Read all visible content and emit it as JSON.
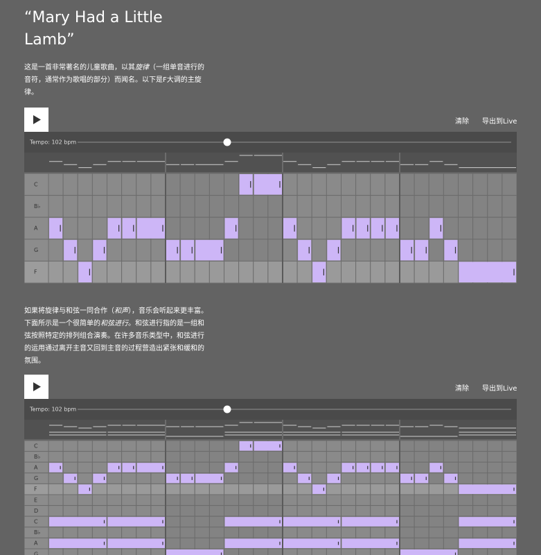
{
  "title": "“Mary Had a Little Lamb”",
  "intro": [
    {
      "text": "这是一首非常著名的儿童歌曲，以其"
    },
    {
      "text": "旋律",
      "italic": true
    },
    {
      "text": "（一组单音进行的音符，通常作为歌唱的部分）而闻名。以下是F大调的主旋律。"
    }
  ],
  "harmony": [
    {
      "text": "如果将旋律与和弦一同合作（"
    },
    {
      "text": "和声",
      "italic": true
    },
    {
      "text": "），音乐会听起来更丰富。下面所示是一个很简单的"
    },
    {
      "text": "和弦进行",
      "italic": true
    },
    {
      "text": "。和弦进行指的是一组和弦按照特定的排列组合演奏。在许多音乐类型中，和弦进行的运用通过离开主音又回到主音的过程营造出紧张和缓和的氛围。"
    }
  ],
  "players": [
    {
      "clear": "清除",
      "export": "导出到Live",
      "tempo": "Tempo: 102 bpm",
      "steps": 32,
      "bar_steps": 8,
      "rows": [
        "C",
        "B♭",
        "A",
        "G",
        "F"
      ],
      "tonic_rows": [
        4
      ],
      "notes": [
        [
          2,
          0,
          1
        ],
        [
          3,
          1,
          1
        ],
        [
          4,
          2,
          1
        ],
        [
          3,
          3,
          1
        ],
        [
          2,
          4,
          1
        ],
        [
          2,
          5,
          1
        ],
        [
          2,
          6,
          2
        ],
        [
          3,
          8,
          1
        ],
        [
          3,
          9,
          1
        ],
        [
          3,
          10,
          2
        ],
        [
          2,
          12,
          1
        ],
        [
          0,
          13,
          1
        ],
        [
          0,
          14,
          2
        ],
        [
          2,
          16,
          1
        ],
        [
          3,
          17,
          1
        ],
        [
          4,
          18,
          1
        ],
        [
          3,
          19,
          1
        ],
        [
          2,
          20,
          1
        ],
        [
          2,
          21,
          1
        ],
        [
          2,
          22,
          1
        ],
        [
          2,
          23,
          1
        ],
        [
          3,
          24,
          1
        ],
        [
          3,
          25,
          1
        ],
        [
          2,
          26,
          1
        ],
        [
          3,
          27,
          1
        ],
        [
          4,
          28,
          4
        ]
      ]
    },
    {
      "clear": "清除",
      "export": "导出到Live",
      "tempo": "Tempo: 102 bpm",
      "steps": 32,
      "bar_steps": 8,
      "rows": [
        "C",
        "B♭",
        "A",
        "G",
        "F",
        "E",
        "D",
        "C",
        "B♭",
        "A",
        "G"
      ],
      "tonic_rows": [
        4
      ],
      "notes": [
        [
          2,
          0,
          1
        ],
        [
          3,
          1,
          1
        ],
        [
          4,
          2,
          1
        ],
        [
          3,
          3,
          1
        ],
        [
          2,
          4,
          1
        ],
        [
          2,
          5,
          1
        ],
        [
          2,
          6,
          2
        ],
        [
          3,
          8,
          1
        ],
        [
          3,
          9,
          1
        ],
        [
          3,
          10,
          2
        ],
        [
          2,
          12,
          1
        ],
        [
          0,
          13,
          1
        ],
        [
          0,
          14,
          2
        ],
        [
          2,
          16,
          1
        ],
        [
          3,
          17,
          1
        ],
        [
          4,
          18,
          1
        ],
        [
          3,
          19,
          1
        ],
        [
          2,
          20,
          1
        ],
        [
          2,
          21,
          1
        ],
        [
          2,
          22,
          1
        ],
        [
          2,
          23,
          1
        ],
        [
          3,
          24,
          1
        ],
        [
          3,
          25,
          1
        ],
        [
          2,
          26,
          1
        ],
        [
          3,
          27,
          1
        ],
        [
          4,
          28,
          4
        ],
        [
          7,
          0,
          4
        ],
        [
          7,
          4,
          4
        ],
        [
          7,
          12,
          4
        ],
        [
          7,
          16,
          4
        ],
        [
          7,
          20,
          4
        ],
        [
          7,
          28,
          4
        ],
        [
          9,
          0,
          4
        ],
        [
          9,
          4,
          4
        ],
        [
          9,
          12,
          4
        ],
        [
          9,
          16,
          4
        ],
        [
          9,
          20,
          4
        ],
        [
          9,
          28,
          4
        ],
        [
          10,
          8,
          4
        ],
        [
          10,
          24,
          4
        ]
      ]
    }
  ]
}
